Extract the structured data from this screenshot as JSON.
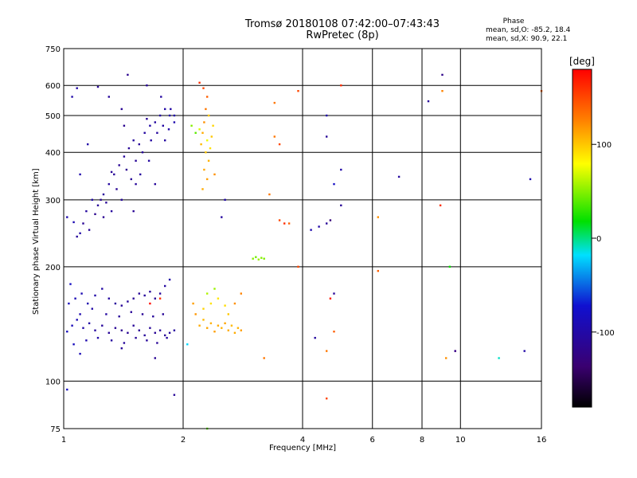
{
  "header": {
    "title_line1": "Tromsø 20180108 07:42:00–07:43:43",
    "title_line2": "RwPretec (8p)",
    "phase_title": "Phase",
    "phase_stat_o": "mean, sd,O: -85.2, 18.4",
    "phase_stat_x": "mean, sd,X: 90.9, 22.1"
  },
  "colorbar": {
    "unit_label": "[deg]",
    "ticks": [
      {
        "value": 100,
        "label": "100"
      },
      {
        "value": 0,
        "label": "0"
      },
      {
        "value": -100,
        "label": "-100"
      }
    ],
    "range": [
      -180,
      180
    ],
    "colors": [
      "#000000",
      "#3a0070",
      "#1010d0",
      "#00e0ff",
      "#00e000",
      "#ffff00",
      "#ff8000",
      "#ff0000"
    ]
  },
  "chart_data": {
    "type": "scatter",
    "xlabel": "Frequency [MHz]",
    "ylabel": "Stationary phase Virtual Height [km]",
    "xscale": "log",
    "yscale": "log",
    "xlim": [
      1,
      16
    ],
    "ylim": [
      75,
      750
    ],
    "xticks": [
      {
        "value": 1,
        "label": "1"
      },
      {
        "value": 2,
        "label": "2"
      },
      {
        "value": 4,
        "label": "4"
      },
      {
        "value": 6,
        "label": "6"
      },
      {
        "value": 8,
        "label": "8"
      },
      {
        "value": 10,
        "label": "10"
      },
      {
        "value": 16,
        "label": "16"
      }
    ],
    "yticks": [
      {
        "value": 75,
        "label": "75"
      },
      {
        "value": 100,
        "label": "100"
      },
      {
        "value": 200,
        "label": "200"
      },
      {
        "value": 300,
        "label": "300"
      },
      {
        "value": 400,
        "label": "400"
      },
      {
        "value": 500,
        "label": "500"
      },
      {
        "value": 600,
        "label": "600"
      },
      {
        "value": 750,
        "label": "750"
      }
    ],
    "grid": true,
    "series": [
      {
        "points": [
          [
            1.02,
            270,
            -95
          ],
          [
            1.06,
            262,
            -92
          ],
          [
            1.1,
            245,
            -100
          ],
          [
            1.14,
            280,
            -105
          ],
          [
            1.18,
            300,
            -100
          ],
          [
            1.22,
            290,
            -110
          ],
          [
            1.26,
            310,
            -108
          ],
          [
            1.3,
            330,
            -105
          ],
          [
            1.34,
            350,
            -110
          ],
          [
            1.38,
            370,
            -112
          ],
          [
            1.42,
            390,
            -108
          ],
          [
            1.46,
            410,
            -110
          ],
          [
            1.5,
            430,
            -106
          ],
          [
            1.55,
            420,
            -110
          ],
          [
            1.6,
            450,
            -104
          ],
          [
            1.65,
            470,
            -100
          ],
          [
            1.7,
            480,
            -105
          ],
          [
            1.75,
            500,
            -102
          ],
          [
            1.8,
            520,
            -100
          ],
          [
            1.85,
            500,
            -98
          ],
          [
            1.9,
            480,
            -95
          ],
          [
            1.12,
            260,
            -112
          ],
          [
            1.2,
            275,
            -115
          ],
          [
            1.28,
            295,
            -110
          ],
          [
            1.36,
            320,
            -112
          ],
          [
            1.44,
            360,
            -115
          ],
          [
            1.52,
            380,
            -110
          ],
          [
            1.58,
            400,
            -108
          ],
          [
            1.66,
            430,
            -104
          ],
          [
            1.72,
            450,
            -106
          ],
          [
            1.78,
            470,
            -103
          ],
          [
            1.84,
            460,
            -100
          ],
          [
            1.4,
            300,
            -108
          ],
          [
            1.48,
            340,
            -110
          ],
          [
            1.56,
            350,
            -106
          ],
          [
            1.64,
            380,
            -104
          ],
          [
            1.32,
            280,
            -106
          ],
          [
            1.16,
            250,
            -110
          ],
          [
            1.08,
            240,
            -108
          ],
          [
            1.24,
            300,
            -112
          ],
          [
            1.62,
            600,
            -110
          ],
          [
            1.45,
            640,
            -115
          ],
          [
            1.22,
            595,
            -110
          ],
          [
            1.3,
            560,
            -108
          ],
          [
            1.4,
            520,
            -112
          ],
          [
            1.52,
            330,
            -108
          ],
          [
            1.26,
            270,
            -114
          ],
          [
            1.5,
            280,
            -112
          ],
          [
            1.7,
            330,
            -108
          ],
          [
            1.8,
            430,
            -104
          ],
          [
            1.9,
            500,
            -98
          ],
          [
            1.86,
            520,
            -102
          ],
          [
            1.76,
            560,
            -104
          ],
          [
            1.15,
            420,
            -100
          ],
          [
            1.1,
            350,
            -96
          ],
          [
            1.05,
            560,
            -98
          ],
          [
            1.08,
            590,
            -100
          ],
          [
            1.32,
            355,
            -110
          ],
          [
            1.42,
            470,
            -115
          ],
          [
            1.62,
            490,
            -112
          ]
        ]
      },
      {
        "points": [
          [
            1.02,
            135,
            -85
          ],
          [
            1.05,
            140,
            -88
          ],
          [
            1.08,
            145,
            -90
          ],
          [
            1.12,
            138,
            -100
          ],
          [
            1.16,
            142,
            -102
          ],
          [
            1.2,
            136,
            -105
          ],
          [
            1.25,
            140,
            -108
          ],
          [
            1.3,
            134,
            -110
          ],
          [
            1.35,
            138,
            -112
          ],
          [
            1.4,
            136,
            -115
          ],
          [
            1.45,
            134,
            -112
          ],
          [
            1.5,
            140,
            -110
          ],
          [
            1.55,
            136,
            -112
          ],
          [
            1.6,
            132,
            -108
          ],
          [
            1.65,
            138,
            -110
          ],
          [
            1.7,
            134,
            -112
          ],
          [
            1.75,
            136,
            -108
          ],
          [
            1.8,
            132,
            -110
          ],
          [
            1.85,
            134,
            -106
          ],
          [
            1.9,
            136,
            -105
          ],
          [
            1.03,
            160,
            -85
          ],
          [
            1.07,
            165,
            -90
          ],
          [
            1.11,
            170,
            -92
          ],
          [
            1.15,
            160,
            -95
          ],
          [
            1.2,
            168,
            -100
          ],
          [
            1.25,
            175,
            -102
          ],
          [
            1.3,
            165,
            -105
          ],
          [
            1.35,
            160,
            -108
          ],
          [
            1.4,
            158,
            -110
          ],
          [
            1.45,
            162,
            -108
          ],
          [
            1.5,
            165,
            -112
          ],
          [
            1.55,
            170,
            -110
          ],
          [
            1.6,
            168,
            -108
          ],
          [
            1.65,
            172,
            -110
          ],
          [
            1.7,
            165,
            -112
          ],
          [
            1.75,
            170,
            -108
          ],
          [
            1.8,
            178,
            -104
          ],
          [
            1.85,
            185,
            -100
          ],
          [
            1.04,
            180,
            -80
          ],
          [
            1.1,
            150,
            -95
          ],
          [
            1.18,
            155,
            -100
          ],
          [
            1.28,
            150,
            -104
          ],
          [
            1.38,
            148,
            -108
          ],
          [
            1.48,
            152,
            -110
          ],
          [
            1.58,
            150,
            -112
          ],
          [
            1.68,
            148,
            -108
          ],
          [
            1.78,
            150,
            -110
          ],
          [
            1.06,
            125,
            -85
          ],
          [
            1.14,
            128,
            -95
          ],
          [
            1.22,
            130,
            -100
          ],
          [
            1.32,
            128,
            -105
          ],
          [
            1.42,
            126,
            -108
          ],
          [
            1.52,
            130,
            -110
          ],
          [
            1.62,
            128,
            -108
          ],
          [
            1.72,
            126,
            -110
          ],
          [
            1.82,
            130,
            -106
          ],
          [
            1.1,
            118,
            -90
          ],
          [
            1.4,
            122,
            -110
          ],
          [
            1.7,
            115,
            -112
          ],
          [
            1.02,
            95,
            -80
          ],
          [
            1.9,
            92,
            -110
          ],
          [
            1.75,
            165,
            160
          ],
          [
            1.65,
            160,
            175
          ]
        ]
      },
      {
        "points": [
          [
            2.2,
            140,
            110
          ],
          [
            2.25,
            145,
            105
          ],
          [
            2.3,
            138,
            112
          ],
          [
            2.35,
            142,
            108
          ],
          [
            2.4,
            135,
            115
          ],
          [
            2.45,
            140,
            110
          ],
          [
            2.5,
            138,
            108
          ],
          [
            2.55,
            142,
            112
          ],
          [
            2.6,
            136,
            110
          ],
          [
            2.65,
            140,
            105
          ],
          [
            2.7,
            134,
            110
          ],
          [
            2.75,
            138,
            108
          ],
          [
            2.8,
            136,
            115
          ],
          [
            2.25,
            155,
            95
          ],
          [
            2.35,
            160,
            90
          ],
          [
            2.45,
            165,
            88
          ],
          [
            2.55,
            158,
            92
          ],
          [
            2.3,
            170,
            60
          ],
          [
            2.4,
            175,
            55
          ],
          [
            2.15,
            150,
            118
          ],
          [
            2.12,
            160,
            115
          ],
          [
            2.6,
            150,
            100
          ],
          [
            2.7,
            160,
            120
          ],
          [
            2.8,
            170,
            125
          ],
          [
            2.2,
            610,
            160
          ],
          [
            2.25,
            590,
            150
          ],
          [
            2.3,
            560,
            140
          ],
          [
            2.28,
            520,
            130
          ],
          [
            2.26,
            480,
            120
          ],
          [
            2.24,
            450,
            110
          ],
          [
            2.22,
            420,
            105
          ],
          [
            2.28,
            400,
            100
          ],
          [
            2.32,
            380,
            108
          ],
          [
            2.26,
            360,
            112
          ],
          [
            2.3,
            340,
            115
          ],
          [
            2.24,
            320,
            110
          ],
          [
            2.36,
            440,
            100
          ],
          [
            2.38,
            470,
            95
          ],
          [
            2.32,
            500,
            100
          ],
          [
            2.2,
            460,
            70
          ],
          [
            2.3,
            430,
            75
          ],
          [
            2.34,
            410,
            90
          ],
          [
            2.1,
            470,
            50
          ],
          [
            2.15,
            450,
            40
          ],
          [
            2.4,
            350,
            120
          ],
          [
            2.05,
            125,
            -20
          ],
          [
            2.55,
            300,
            -100
          ],
          [
            2.5,
            270,
            -105
          ],
          [
            3.0,
            210,
            50
          ],
          [
            3.05,
            212,
            45
          ],
          [
            3.1,
            209,
            55
          ],
          [
            3.15,
            211,
            50
          ],
          [
            3.2,
            210,
            48
          ],
          [
            2.3,
            75,
            40
          ],
          [
            3.2,
            115,
            130
          ],
          [
            3.4,
            440,
            130
          ],
          [
            3.5,
            420,
            150
          ],
          [
            3.5,
            265,
            150
          ],
          [
            3.6,
            260,
            160
          ],
          [
            3.7,
            260,
            140
          ],
          [
            3.3,
            310,
            130
          ],
          [
            3.4,
            540,
            130
          ],
          [
            3.9,
            580,
            150
          ]
        ]
      },
      {
        "points": [
          [
            4.6,
            500,
            -100
          ],
          [
            4.6,
            440,
            -110
          ],
          [
            5.0,
            360,
            -100
          ],
          [
            4.8,
            330,
            -80
          ],
          [
            5.0,
            290,
            -110
          ],
          [
            4.7,
            265,
            -130
          ],
          [
            4.6,
            260,
            -110
          ],
          [
            4.4,
            255,
            -100
          ],
          [
            4.2,
            250,
            -95
          ],
          [
            4.3,
            130,
            -105
          ],
          [
            4.8,
            170,
            -110
          ],
          [
            4.7,
            165,
            170
          ],
          [
            4.6,
            90,
            150
          ],
          [
            4.8,
            135,
            140
          ],
          [
            4.6,
            120,
            130
          ],
          [
            5.0,
            600,
            160
          ],
          [
            6.2,
            270,
            120
          ],
          [
            6.2,
            195,
            140
          ],
          [
            7.0,
            345,
            -105
          ],
          [
            8.3,
            545,
            -108
          ],
          [
            9.0,
            640,
            -120
          ],
          [
            9.0,
            580,
            125
          ],
          [
            8.9,
            290,
            160
          ],
          [
            9.4,
            200,
            20
          ],
          [
            9.2,
            115,
            120
          ],
          [
            9.7,
            120,
            170
          ],
          [
            9.7,
            120,
            -110
          ],
          [
            12.5,
            115,
            -10
          ],
          [
            14.5,
            120,
            -100
          ],
          [
            15.0,
            340,
            -95
          ],
          [
            16.0,
            580,
            140
          ],
          [
            3.9,
            200,
            150
          ]
        ]
      }
    ]
  }
}
